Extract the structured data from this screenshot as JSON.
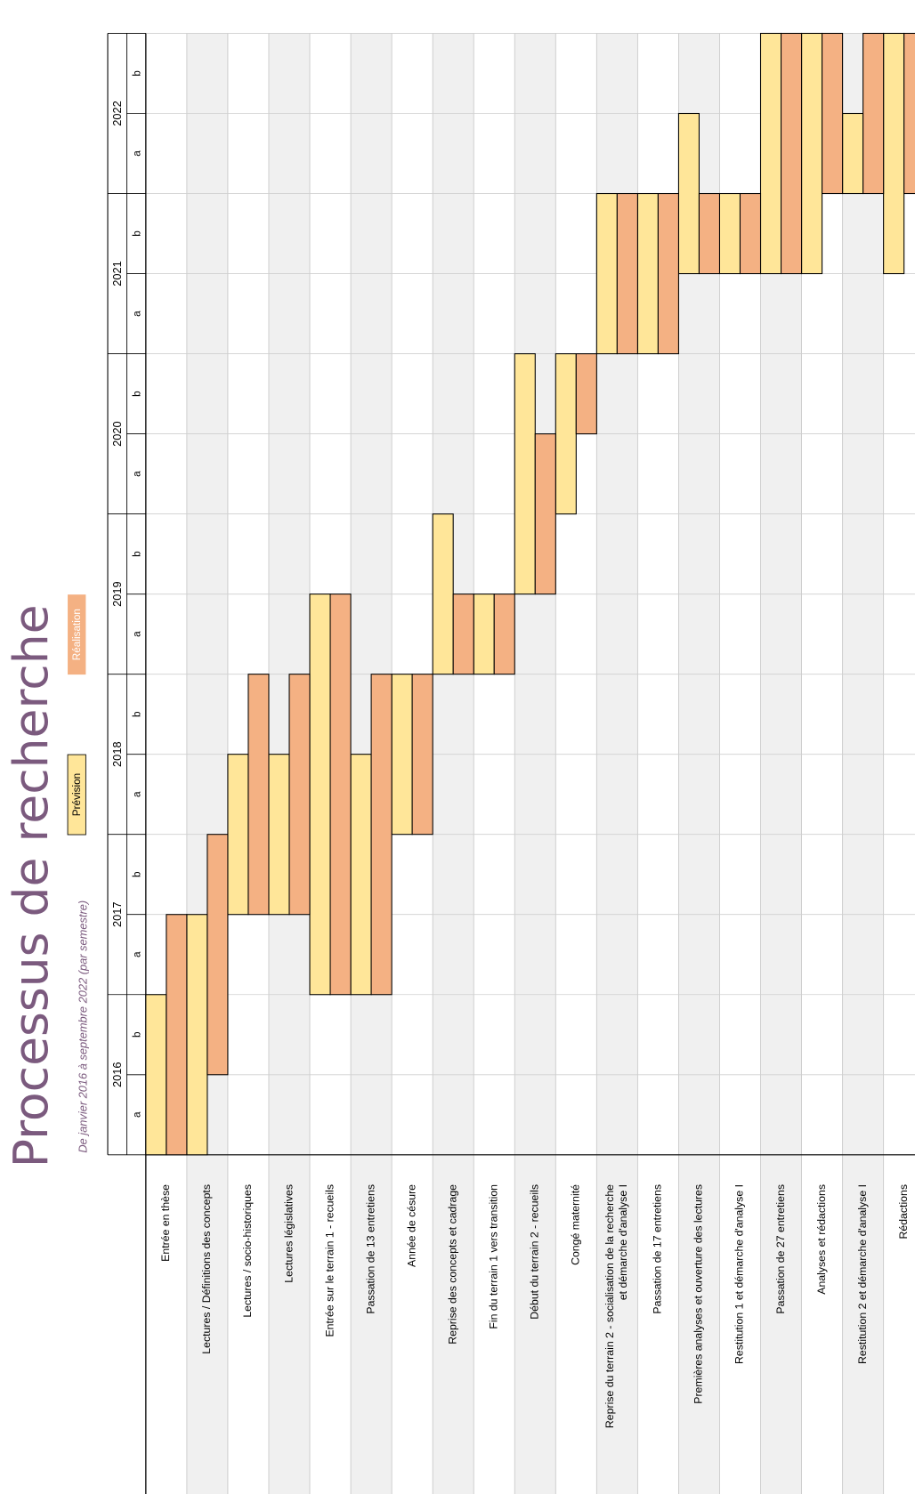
{
  "chart_data": {
    "type": "gantt",
    "title": "Processus de recherche",
    "subtitle": "De janvier 2016 à septembre 2022 (par semestre)",
    "years": [
      "2016",
      "2017",
      "2018",
      "2019",
      "2020",
      "2021",
      "2022"
    ],
    "semesters": [
      "a",
      "b"
    ],
    "xlim": [
      0,
      14
    ],
    "xticks": [
      0,
      1,
      2,
      3,
      4,
      5,
      6,
      7,
      8,
      9,
      10,
      11,
      12,
      13,
      14
    ],
    "grid": true,
    "categories": [
      "Entrée en thèse",
      "Lectures / Définitions des concepts",
      "Lectures / socio-historiques",
      "Lectures législatives",
      "Entrée sur le terrain 1 - recueils",
      "Passation de 13 entretiens",
      "Année de césure",
      "Reprise des concepts et cadrage",
      "Fin du terrain 1 vers transition",
      "Début du terrain 2 - recueils",
      "Congé maternité",
      [
        "Reprise du terrain 2 - socialisation de la recherche",
        "et démarche d'analyse I"
      ],
      "Passation de 17 entretiens",
      "Premières analyses et ouverture des lectures",
      "Restitution 1 et démarche d'analyse I",
      "Passation de 27 entretiens",
      "Analyses et rédactions",
      "Restitution 2 et démarche d'analyse I",
      "Rédactions"
    ],
    "series": [
      {
        "name": "Prévision",
        "color": "#ffe699",
        "values": [
          [
            0,
            2
          ],
          [
            0,
            3
          ],
          [
            3,
            5
          ],
          [
            3,
            5
          ],
          [
            2,
            7
          ],
          [
            2,
            5
          ],
          [
            4,
            6
          ],
          [
            6,
            8
          ],
          [
            6,
            7
          ],
          [
            7,
            10
          ],
          [
            8,
            10
          ],
          [
            10,
            12
          ],
          [
            10,
            12
          ],
          [
            11,
            13
          ],
          [
            11,
            12
          ],
          [
            11,
            14
          ],
          [
            11,
            14
          ],
          [
            12,
            13
          ],
          [
            11,
            14
          ]
        ]
      },
      {
        "name": "Réalisation",
        "color": "#f4b183",
        "values": [
          [
            0,
            3
          ],
          [
            1,
            4
          ],
          [
            3,
            6
          ],
          [
            3,
            6
          ],
          [
            2,
            7
          ],
          [
            2,
            6
          ],
          [
            4,
            6
          ],
          [
            6,
            7
          ],
          [
            6,
            7
          ],
          [
            7,
            9
          ],
          [
            9,
            10
          ],
          [
            10,
            12
          ],
          [
            10,
            12
          ],
          [
            11,
            12
          ],
          [
            11,
            12
          ],
          [
            11,
            14
          ],
          [
            12,
            14
          ],
          [
            12,
            14
          ],
          [
            12,
            14
          ]
        ]
      }
    ]
  }
}
